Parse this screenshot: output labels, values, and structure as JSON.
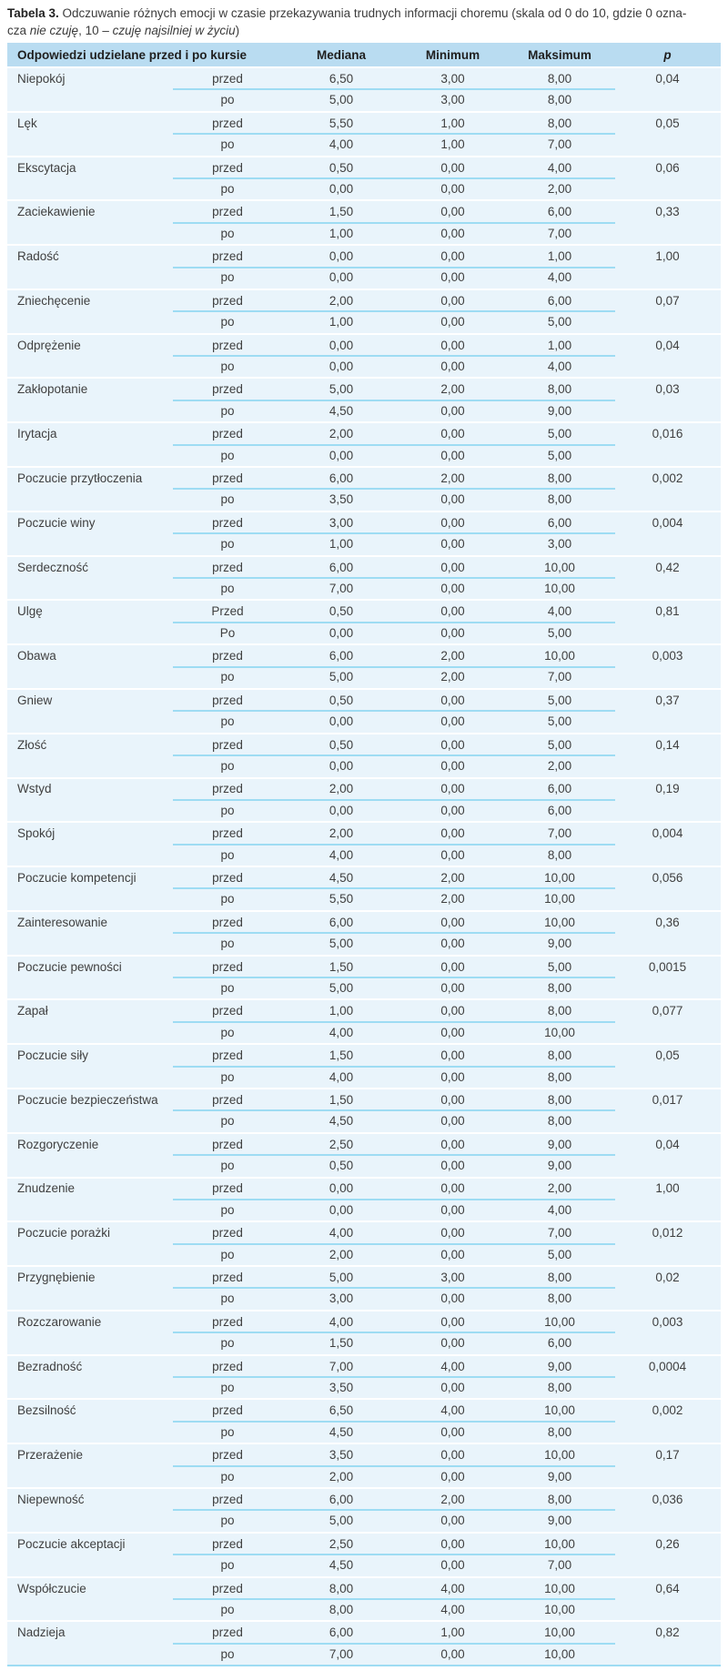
{
  "title": {
    "segments": [
      {
        "text": "Tabela 3.",
        "style": "bold"
      },
      {
        "text": " Odczuwanie różnych emocji w czasie przekazywania trudnych informacji choremu (skala od 0 do 10, gdzie 0 ozna-",
        "style": "normal"
      },
      {
        "text": "",
        "style": "break"
      },
      {
        "text": "cza ",
        "style": "normal"
      },
      {
        "text": "nie czuję",
        "style": "italic"
      },
      {
        "text": ", 10 – ",
        "style": "normal"
      },
      {
        "text": "czuję najsilniej w życiu",
        "style": "italic"
      },
      {
        "text": ")",
        "style": "normal"
      }
    ]
  },
  "colors": {
    "header_bg": "#b9dcf1",
    "row_bg": "#e9f4fb",
    "divider": "#9edcf3",
    "group_divider": "#ffffff",
    "text": "#3f3f3f",
    "header_text": "#1f1f1f"
  },
  "table": {
    "headers": [
      "Odpowiedzi udzielane przed i po kursie",
      "Mediana",
      "Minimum",
      "Maksimum",
      "p"
    ],
    "groups": [
      {
        "emotion": "Niepokój",
        "p": "0,04",
        "rows": [
          {
            "phase": "przed",
            "mediana": "6,50",
            "minimum": "3,00",
            "maksimum": "8,00"
          },
          {
            "phase": "po",
            "mediana": "5,00",
            "minimum": "3,00",
            "maksimum": "8,00"
          }
        ]
      },
      {
        "emotion": "Lęk",
        "p": "0,05",
        "rows": [
          {
            "phase": "przed",
            "mediana": "5,50",
            "minimum": "1,00",
            "maksimum": "8,00"
          },
          {
            "phase": "po",
            "mediana": "4,00",
            "minimum": "1,00",
            "maksimum": "7,00"
          }
        ]
      },
      {
        "emotion": "Ekscytacja",
        "p": "0,06",
        "rows": [
          {
            "phase": "przed",
            "mediana": "0,50",
            "minimum": "0,00",
            "maksimum": "4,00"
          },
          {
            "phase": "po",
            "mediana": "0,00",
            "minimum": "0,00",
            "maksimum": "2,00"
          }
        ]
      },
      {
        "emotion": "Zaciekawienie",
        "p": "0,33",
        "rows": [
          {
            "phase": "przed",
            "mediana": "1,50",
            "minimum": "0,00",
            "maksimum": "6,00"
          },
          {
            "phase": "po",
            "mediana": "1,00",
            "minimum": "0,00",
            "maksimum": "7,00"
          }
        ]
      },
      {
        "emotion": "Radość",
        "p": "1,00",
        "rows": [
          {
            "phase": "przed",
            "mediana": "0,00",
            "minimum": "0,00",
            "maksimum": "1,00"
          },
          {
            "phase": "po",
            "mediana": "0,00",
            "minimum": "0,00",
            "maksimum": "4,00"
          }
        ]
      },
      {
        "emotion": "Zniechęcenie",
        "p": "0,07",
        "rows": [
          {
            "phase": "przed",
            "mediana": "2,00",
            "minimum": "0,00",
            "maksimum": "6,00"
          },
          {
            "phase": "po",
            "mediana": "1,00",
            "minimum": "0,00",
            "maksimum": "5,00"
          }
        ]
      },
      {
        "emotion": "Odprężenie",
        "p": "0,04",
        "rows": [
          {
            "phase": "przed",
            "mediana": "0,00",
            "minimum": "0,00",
            "maksimum": "1,00"
          },
          {
            "phase": "po",
            "mediana": "0,00",
            "minimum": "0,00",
            "maksimum": "4,00"
          }
        ]
      },
      {
        "emotion": "Zakłopotanie",
        "p": "0,03",
        "rows": [
          {
            "phase": "przed",
            "mediana": "5,00",
            "minimum": "2,00",
            "maksimum": "8,00"
          },
          {
            "phase": "po",
            "mediana": "4,50",
            "minimum": "0,00",
            "maksimum": "9,00"
          }
        ]
      },
      {
        "emotion": "Irytacja",
        "p": "0,016",
        "rows": [
          {
            "phase": "przed",
            "mediana": "2,00",
            "minimum": "0,00",
            "maksimum": "5,00"
          },
          {
            "phase": "po",
            "mediana": "0,00",
            "minimum": "0,00",
            "maksimum": "5,00"
          }
        ]
      },
      {
        "emotion": "Poczucie przytłoczenia",
        "p": "0,002",
        "rows": [
          {
            "phase": "przed",
            "mediana": "6,00",
            "minimum": "2,00",
            "maksimum": "8,00"
          },
          {
            "phase": "po",
            "mediana": "3,50",
            "minimum": "0,00",
            "maksimum": "8,00"
          }
        ]
      },
      {
        "emotion": "Poczucie winy",
        "p": "0,004",
        "rows": [
          {
            "phase": "przed",
            "mediana": "3,00",
            "minimum": "0,00",
            "maksimum": "6,00"
          },
          {
            "phase": "po",
            "mediana": "1,00",
            "minimum": "0,00",
            "maksimum": "3,00"
          }
        ]
      },
      {
        "emotion": "Serdeczność",
        "p": "0,42",
        "rows": [
          {
            "phase": "przed",
            "mediana": "6,00",
            "minimum": "0,00",
            "maksimum": "10,00"
          },
          {
            "phase": "po",
            "mediana": "7,00",
            "minimum": "0,00",
            "maksimum": "10,00"
          }
        ]
      },
      {
        "emotion": "Ulgę",
        "p": "0,81",
        "rows": [
          {
            "phase": "Przed",
            "mediana": "0,50",
            "minimum": "0,00",
            "maksimum": "4,00"
          },
          {
            "phase": "Po",
            "mediana": "0,00",
            "minimum": "0,00",
            "maksimum": "5,00"
          }
        ]
      },
      {
        "emotion": "Obawa",
        "p": "0,003",
        "rows": [
          {
            "phase": "przed",
            "mediana": "6,00",
            "minimum": "2,00",
            "maksimum": "10,00"
          },
          {
            "phase": "po",
            "mediana": "5,00",
            "minimum": "2,00",
            "maksimum": "7,00"
          }
        ]
      },
      {
        "emotion": "Gniew",
        "p": "0,37",
        "rows": [
          {
            "phase": "przed",
            "mediana": "0,50",
            "minimum": "0,00",
            "maksimum": "5,00"
          },
          {
            "phase": "po",
            "mediana": "0,00",
            "minimum": "0,00",
            "maksimum": "5,00"
          }
        ]
      },
      {
        "emotion": "Złość",
        "p": "0,14",
        "rows": [
          {
            "phase": "przed",
            "mediana": "0,50",
            "minimum": "0,00",
            "maksimum": "5,00"
          },
          {
            "phase": "po",
            "mediana": "0,00",
            "minimum": "0,00",
            "maksimum": "2,00"
          }
        ]
      },
      {
        "emotion": "Wstyd",
        "p": "0,19",
        "rows": [
          {
            "phase": "przed",
            "mediana": "2,00",
            "minimum": "0,00",
            "maksimum": "6,00"
          },
          {
            "phase": "po",
            "mediana": "0,00",
            "minimum": "0,00",
            "maksimum": "6,00"
          }
        ]
      },
      {
        "emotion": "Spokój",
        "p": "0,004",
        "rows": [
          {
            "phase": "przed",
            "mediana": "2,00",
            "minimum": "0,00",
            "maksimum": "7,00"
          },
          {
            "phase": "po",
            "mediana": "4,00",
            "minimum": "0,00",
            "maksimum": "8,00"
          }
        ]
      },
      {
        "emotion": "Poczucie kompetencji",
        "p": "0,056",
        "rows": [
          {
            "phase": "przed",
            "mediana": "4,50",
            "minimum": "2,00",
            "maksimum": "10,00"
          },
          {
            "phase": "po",
            "mediana": "5,50",
            "minimum": "2,00",
            "maksimum": "10,00"
          }
        ]
      },
      {
        "emotion": "Zainteresowanie",
        "p": "0,36",
        "rows": [
          {
            "phase": "przed",
            "mediana": "6,00",
            "minimum": "0,00",
            "maksimum": "10,00"
          },
          {
            "phase": "po",
            "mediana": "5,00",
            "minimum": "0,00",
            "maksimum": "9,00"
          }
        ]
      },
      {
        "emotion": "Poczucie pewności",
        "p": "0,0015",
        "rows": [
          {
            "phase": "przed",
            "mediana": "1,50",
            "minimum": "0,00",
            "maksimum": "5,00"
          },
          {
            "phase": "po",
            "mediana": "5,00",
            "minimum": "0,00",
            "maksimum": "8,00"
          }
        ]
      },
      {
        "emotion": "Zapał",
        "p": "0,077",
        "rows": [
          {
            "phase": "przed",
            "mediana": "1,00",
            "minimum": "0,00",
            "maksimum": "8,00"
          },
          {
            "phase": "po",
            "mediana": "4,00",
            "minimum": "0,00",
            "maksimum": "10,00"
          }
        ]
      },
      {
        "emotion": "Poczucie siły",
        "p": "0,05",
        "rows": [
          {
            "phase": "przed",
            "mediana": "1,50",
            "minimum": "0,00",
            "maksimum": "8,00"
          },
          {
            "phase": "po",
            "mediana": "4,00",
            "minimum": "0,00",
            "maksimum": "8,00"
          }
        ]
      },
      {
        "emotion": "Poczucie bezpieczeństwa",
        "p": "0,017",
        "rows": [
          {
            "phase": "przed",
            "mediana": "1,50",
            "minimum": "0,00",
            "maksimum": "8,00"
          },
          {
            "phase": "po",
            "mediana": "4,50",
            "minimum": "0,00",
            "maksimum": "8,00"
          }
        ]
      },
      {
        "emotion": "Rozgoryczenie",
        "p": "0,04",
        "rows": [
          {
            "phase": "przed",
            "mediana": "2,50",
            "minimum": "0,00",
            "maksimum": "9,00"
          },
          {
            "phase": "po",
            "mediana": "0,50",
            "minimum": "0,00",
            "maksimum": "9,00"
          }
        ]
      },
      {
        "emotion": "Znudzenie",
        "p": "1,00",
        "rows": [
          {
            "phase": "przed",
            "mediana": "0,00",
            "minimum": "0,00",
            "maksimum": "2,00"
          },
          {
            "phase": "po",
            "mediana": "0,00",
            "minimum": "0,00",
            "maksimum": "4,00"
          }
        ]
      },
      {
        "emotion": "Poczucie porażki",
        "p": "0,012",
        "rows": [
          {
            "phase": "przed",
            "mediana": "4,00",
            "minimum": "0,00",
            "maksimum": "7,00"
          },
          {
            "phase": "po",
            "mediana": "2,00",
            "minimum": "0,00",
            "maksimum": "5,00"
          }
        ]
      },
      {
        "emotion": "Przygnębienie",
        "p": "0,02",
        "rows": [
          {
            "phase": "przed",
            "mediana": "5,00",
            "minimum": "3,00",
            "maksimum": "8,00"
          },
          {
            "phase": "po",
            "mediana": "3,00",
            "minimum": "0,00",
            "maksimum": "8,00"
          }
        ]
      },
      {
        "emotion": "Rozczarowanie",
        "p": "0,003",
        "rows": [
          {
            "phase": "przed",
            "mediana": "4,00",
            "minimum": "0,00",
            "maksimum": "10,00"
          },
          {
            "phase": "po",
            "mediana": "1,50",
            "minimum": "0,00",
            "maksimum": "6,00"
          }
        ]
      },
      {
        "emotion": "Bezradność",
        "p": "0,0004",
        "rows": [
          {
            "phase": "przed",
            "mediana": "7,00",
            "minimum": "4,00",
            "maksimum": "9,00"
          },
          {
            "phase": "po",
            "mediana": "3,50",
            "minimum": "0,00",
            "maksimum": "8,00"
          }
        ]
      },
      {
        "emotion": "Bezsilność",
        "p": "0,002",
        "rows": [
          {
            "phase": "przed",
            "mediana": "6,50",
            "minimum": "4,00",
            "maksimum": "10,00"
          },
          {
            "phase": "po",
            "mediana": "4,50",
            "minimum": "0,00",
            "maksimum": "8,00"
          }
        ]
      },
      {
        "emotion": "Przerażenie",
        "p": "0,17",
        "rows": [
          {
            "phase": "przed",
            "mediana": "3,50",
            "minimum": "0,00",
            "maksimum": "10,00"
          },
          {
            "phase": "po",
            "mediana": "2,00",
            "minimum": "0,00",
            "maksimum": "9,00"
          }
        ]
      },
      {
        "emotion": "Niepewność",
        "p": "0,036",
        "rows": [
          {
            "phase": "przed",
            "mediana": "6,00",
            "minimum": "2,00",
            "maksimum": "8,00"
          },
          {
            "phase": "po",
            "mediana": "5,00",
            "minimum": "0,00",
            "maksimum": "9,00"
          }
        ]
      },
      {
        "emotion": "Poczucie akceptacji",
        "p": "0,26",
        "rows": [
          {
            "phase": "przed",
            "mediana": "2,50",
            "minimum": "0,00",
            "maksimum": "10,00"
          },
          {
            "phase": "po",
            "mediana": "4,50",
            "minimum": "0,00",
            "maksimum": "7,00"
          }
        ]
      },
      {
        "emotion": "Współczucie",
        "p": "0,64",
        "rows": [
          {
            "phase": "przed",
            "mediana": "8,00",
            "minimum": "4,00",
            "maksimum": "10,00"
          },
          {
            "phase": "po",
            "mediana": "8,00",
            "minimum": "4,00",
            "maksimum": "10,00"
          }
        ]
      },
      {
        "emotion": "Nadzieja",
        "p": "0,82",
        "rows": [
          {
            "phase": "przed",
            "mediana": "6,00",
            "minimum": "1,00",
            "maksimum": "10,00"
          },
          {
            "phase": "po",
            "mediana": "7,00",
            "minimum": "0,00",
            "maksimum": "10,00"
          }
        ]
      }
    ]
  }
}
